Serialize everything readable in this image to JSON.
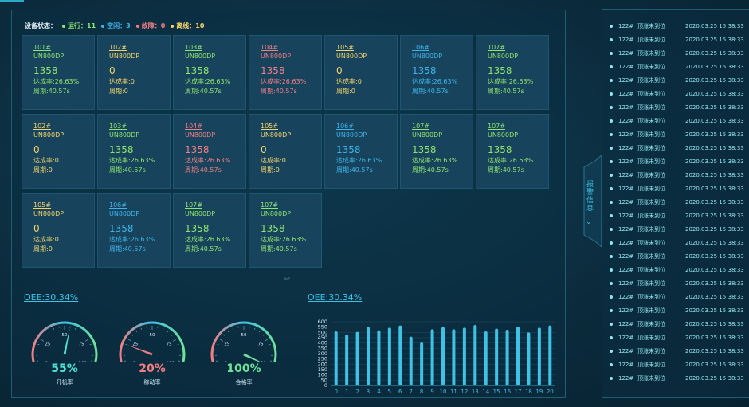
{
  "status": {
    "label": "设备状态：",
    "items": [
      {
        "text": "运行：11",
        "color": "#8fe36f"
      },
      {
        "text": "空闲：3",
        "color": "#3fb4ea"
      },
      {
        "text": "故障：0",
        "color": "#f07f84"
      },
      {
        "text": "离线：10",
        "color": "#f4d46a"
      }
    ]
  },
  "cards": [
    {
      "id": "101#",
      "model": "UN800DP",
      "value": "1358",
      "rate": "达成率:26.63%",
      "period": "周期:40.57s",
      "color": "g"
    },
    {
      "id": "102#",
      "model": "UN800DP",
      "value": "0",
      "rate": "达成率:0",
      "period": "周期:0",
      "color": "y"
    },
    {
      "id": "103#",
      "model": "UN800DP",
      "value": "1358",
      "rate": "达成率:26.63%",
      "period": "周期:40.57s",
      "color": "g"
    },
    {
      "id": "104#",
      "model": "UN800DP",
      "value": "1358",
      "rate": "达成率:26.63%",
      "period": "周期:40.57s",
      "color": "r"
    },
    {
      "id": "105#",
      "model": "UN800DP",
      "value": "0",
      "rate": "达成率:0",
      "period": "周期:0",
      "color": "y"
    },
    {
      "id": "106#",
      "model": "UN800DP",
      "value": "1358",
      "rate": "达成率:26.63%",
      "period": "周期:40.57s",
      "color": "b"
    },
    {
      "id": "107#",
      "model": "UN800DP",
      "value": "1358",
      "rate": "达成率:26.63%",
      "period": "周期:40.57s",
      "color": "g"
    },
    {
      "id": "102#",
      "model": "UN800DP",
      "value": "0",
      "rate": "达成率:0",
      "period": "周期:0",
      "color": "y"
    },
    {
      "id": "103#",
      "model": "UN800DP",
      "value": "1358",
      "rate": "达成率:26.63%",
      "period": "周期:40.57s",
      "color": "g"
    },
    {
      "id": "104#",
      "model": "UN800DP",
      "value": "1358",
      "rate": "达成率:26.63%",
      "period": "周期:40.57s",
      "color": "r"
    },
    {
      "id": "105#",
      "model": "UN800DP",
      "value": "0",
      "rate": "达成率:0",
      "period": "周期:0",
      "color": "y"
    },
    {
      "id": "106#",
      "model": "UN800DP",
      "value": "1358",
      "rate": "达成率:26.63%",
      "period": "周期:40.57s",
      "color": "b"
    },
    {
      "id": "107#",
      "model": "UN800DP",
      "value": "1358",
      "rate": "达成率:26.63%",
      "period": "周期:40.57s",
      "color": "g"
    },
    {
      "id": "107#",
      "model": "UN800DP",
      "value": "1358",
      "rate": "达成率:26.63%",
      "period": "周期:40.57s",
      "color": "g"
    },
    {
      "id": "105#",
      "model": "UN800DP",
      "value": "0",
      "rate": "达成率:0",
      "period": "周期:0",
      "color": "y"
    },
    {
      "id": "106#",
      "model": "UN800DP",
      "value": "1358",
      "rate": "达成率:26.63%",
      "period": "周期:40.57s",
      "color": "b"
    },
    {
      "id": "107#",
      "model": "UN800DP",
      "value": "1358",
      "rate": "达成率:26.63%",
      "period": "周期:40.57s",
      "color": "g"
    },
    {
      "id": "107#",
      "model": "UN800DP",
      "value": "1358",
      "rate": "达成率:26.63%",
      "period": "周期:40.57s",
      "color": "g"
    }
  ],
  "oee_left": "OEE:30.34%",
  "oee_right": "OEE:30.34%",
  "gauges": [
    {
      "value": 55,
      "text": "55%",
      "label": "开机率",
      "color": "#4fe3d6"
    },
    {
      "value": 20,
      "text": "20%",
      "label": "稼动率",
      "color": "#f07f84"
    },
    {
      "value": 100,
      "text": "100%",
      "label": "合格率",
      "color": "#6fe39a"
    }
  ],
  "gauge_ticks": [
    "0",
    "25",
    "50",
    "75",
    "100"
  ],
  "chart_data": {
    "type": "bar",
    "categories": [
      "0",
      "1",
      "2",
      "3",
      "4",
      "5",
      "6",
      "7",
      "8",
      "9",
      "10",
      "11",
      "12",
      "13",
      "14",
      "15",
      "16",
      "17",
      "18",
      "19",
      "20"
    ],
    "values": [
      510,
      480,
      505,
      550,
      520,
      545,
      565,
      460,
      405,
      530,
      550,
      530,
      545,
      570,
      510,
      535,
      525,
      555,
      500,
      545,
      565
    ],
    "ylim": [
      0,
      600
    ],
    "yticks": [
      0,
      50,
      100,
      150,
      200,
      250,
      300,
      350,
      400,
      450,
      500,
      550,
      600
    ],
    "bar_color": "#3ec3e6"
  },
  "side": {
    "tab_label": "报警信息",
    "alarms": [
      {
        "no": "122#",
        "msg": "顶涨未到位",
        "time": "2020.03.25 15:38:33"
      },
      {
        "no": "122#",
        "msg": "顶涨未到位",
        "time": "2020.03.25 15:38:33"
      },
      {
        "no": "122#",
        "msg": "顶涨未到位",
        "time": "2020.03.25 15:38:33"
      },
      {
        "no": "122#",
        "msg": "顶涨未到位",
        "time": "2020.03.25 15:38:33"
      },
      {
        "no": "122#",
        "msg": "顶涨未到位",
        "time": "2020.03.25 15:38:33"
      },
      {
        "no": "122#",
        "msg": "顶涨未到位",
        "time": "2020.03.25 15:38:33"
      },
      {
        "no": "122#",
        "msg": "顶涨未到位",
        "time": "2020.03.25 15:38:33"
      },
      {
        "no": "122#",
        "msg": "顶涨未到位",
        "time": "2020.03.25 15:38:33"
      },
      {
        "no": "122#",
        "msg": "顶涨未到位",
        "time": "2020.03.25 15:38:33"
      },
      {
        "no": "122#",
        "msg": "顶涨未到位",
        "time": "2020.03.25 15:38:33"
      },
      {
        "no": "122#",
        "msg": "顶涨未到位",
        "time": "2020.03.25 15:38:33"
      },
      {
        "no": "122#",
        "msg": "顶涨未到位",
        "time": "2020.03.25 15:38:33"
      },
      {
        "no": "122#",
        "msg": "顶涨未到位",
        "time": "2020.03.25 15:38:33"
      },
      {
        "no": "122#",
        "msg": "顶涨未到位",
        "time": "2020.03.25 15:38:33"
      },
      {
        "no": "122#",
        "msg": "顶涨未到位",
        "time": "2020.03.25 15:38:33"
      },
      {
        "no": "122#",
        "msg": "顶涨未到位",
        "time": "2020.03.25 15:38:33"
      },
      {
        "no": "122#",
        "msg": "顶涨未到位",
        "time": "2020.03.25 15:38:33"
      },
      {
        "no": "122#",
        "msg": "顶涨未到位",
        "time": "2020.03.25 15:38:33"
      },
      {
        "no": "122#",
        "msg": "顶涨未到位",
        "time": "2020.03.25 15:38:33"
      },
      {
        "no": "122#",
        "msg": "顶涨未到位",
        "time": "2020.03.25 15:38:33"
      },
      {
        "no": "122#",
        "msg": "顶涨未到位",
        "time": "2020.03.25 15:38:33"
      },
      {
        "no": "122#",
        "msg": "顶涨未到位",
        "time": "2020.03.25 15:38:33"
      },
      {
        "no": "122#",
        "msg": "顶涨未到位",
        "time": "2020.03.25 15:38:33"
      },
      {
        "no": "122#",
        "msg": "顶涨未到位",
        "time": "2020.03.25 15:38:33"
      },
      {
        "no": "122#",
        "msg": "顶涨未到位",
        "time": "2020.03.25 15:38:33"
      },
      {
        "no": "122#",
        "msg": "顶涨未到位",
        "time": "2020.03.25 15:38:33"
      },
      {
        "no": "122#",
        "msg": "顶涨未到位",
        "time": "2020.03.25 15:38:33"
      }
    ]
  }
}
